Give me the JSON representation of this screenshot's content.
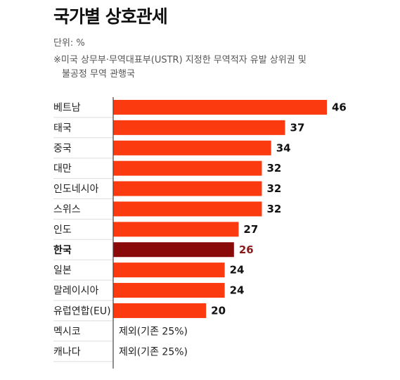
{
  "title": "국가별 상호관세",
  "unit_label": "단위: %",
  "note": {
    "line1": "※미국 상무부·무역대표부(USTR) 지정한 무역적자 유발 상위권 및",
    "line2": "불공정 무역 관행국"
  },
  "colors": {
    "bar": "#fc3a10",
    "highlight": "#8a0a0a",
    "highlight_label": "#8a1a1a",
    "axis": "#444444",
    "separator": "#dddddd"
  },
  "chart_data": {
    "type": "bar",
    "orientation": "horizontal",
    "categories": [
      "베트남",
      "태국",
      "중국",
      "대만",
      "인도네시아",
      "스위스",
      "인도",
      "한국",
      "일본",
      "말레이시아",
      "유럽연합(EU)",
      "멕시코",
      "캐나다"
    ],
    "values": [
      46,
      37,
      34,
      32,
      32,
      32,
      27,
      26,
      24,
      24,
      20,
      null,
      null
    ],
    "value_labels": [
      "46",
      "37",
      "34",
      "32",
      "32",
      "32",
      "27",
      "26",
      "24",
      "24",
      "20",
      "제외(기존 25%)",
      "제외(기존 25%)"
    ],
    "highlight_category": "한국",
    "xlim": [
      0,
      46
    ],
    "grid": false,
    "legend": "none"
  }
}
